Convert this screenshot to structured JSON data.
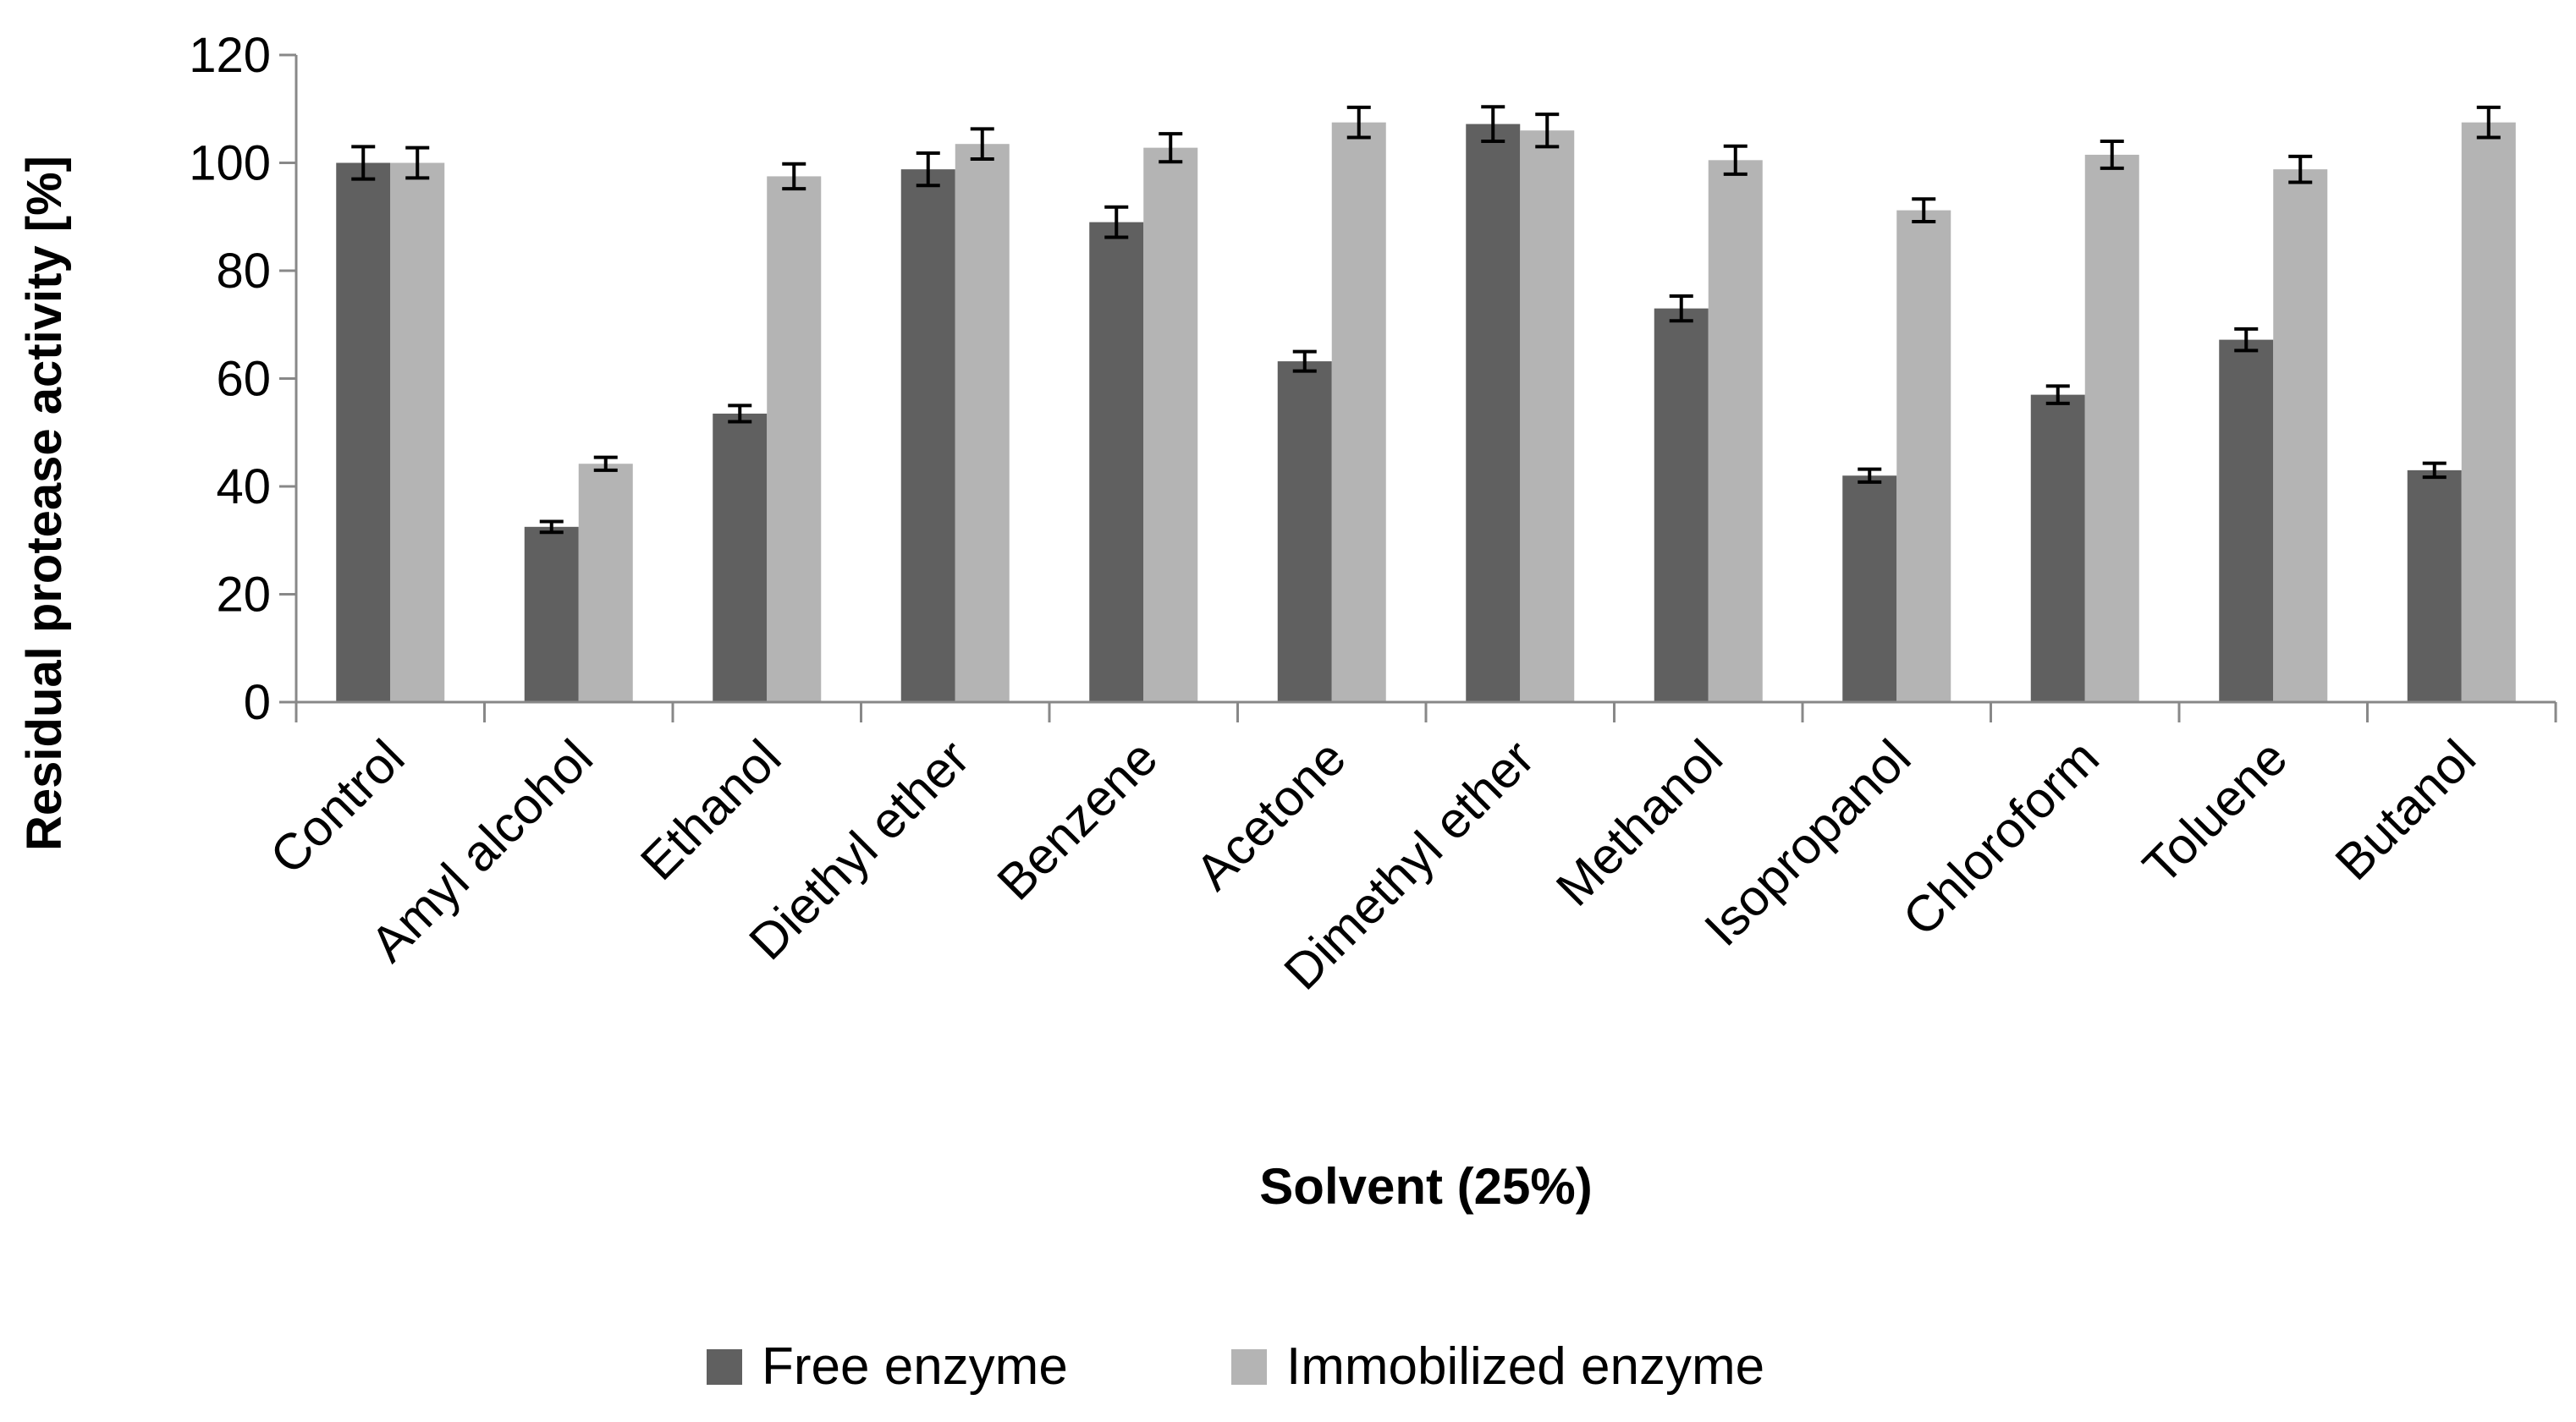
{
  "chart_data": {
    "type": "bar",
    "title": "",
    "xlabel": "Solvent (25%)",
    "ylabel": "Residual protease activity [%]",
    "ylim": [
      0,
      120
    ],
    "yticks": [
      0,
      20,
      40,
      60,
      80,
      100,
      120
    ],
    "grid": false,
    "legend_position": "bottom",
    "categories": [
      "Control",
      "Amyl alcohol",
      "Ethanol",
      "Diethyl ether",
      "Benzene",
      "Acetone",
      "Dimethyl ether",
      "Methanol",
      "Isopropanol",
      "Chloroform",
      "Toluene",
      "Butanol"
    ],
    "series": [
      {
        "name": "Free enzyme",
        "color": "#606060",
        "values": [
          100,
          32.5,
          53.5,
          98.8,
          89,
          63.2,
          107.2,
          73,
          42,
          57,
          67.2,
          43
        ],
        "errors": [
          3,
          1,
          1.5,
          3,
          2.8,
          1.8,
          3.2,
          2.3,
          1.2,
          1.6,
          2,
          1.3
        ]
      },
      {
        "name": "Immobilized enzyme",
        "color": "#b4b4b4",
        "values": [
          100,
          44.2,
          97.5,
          103.5,
          102.8,
          107.5,
          106,
          100.5,
          91.2,
          101.5,
          98.8,
          107.5
        ],
        "errors": [
          2.8,
          1.2,
          2.3,
          2.8,
          2.6,
          2.8,
          3,
          2.6,
          2.1,
          2.5,
          2.4,
          2.8
        ]
      }
    ]
  }
}
